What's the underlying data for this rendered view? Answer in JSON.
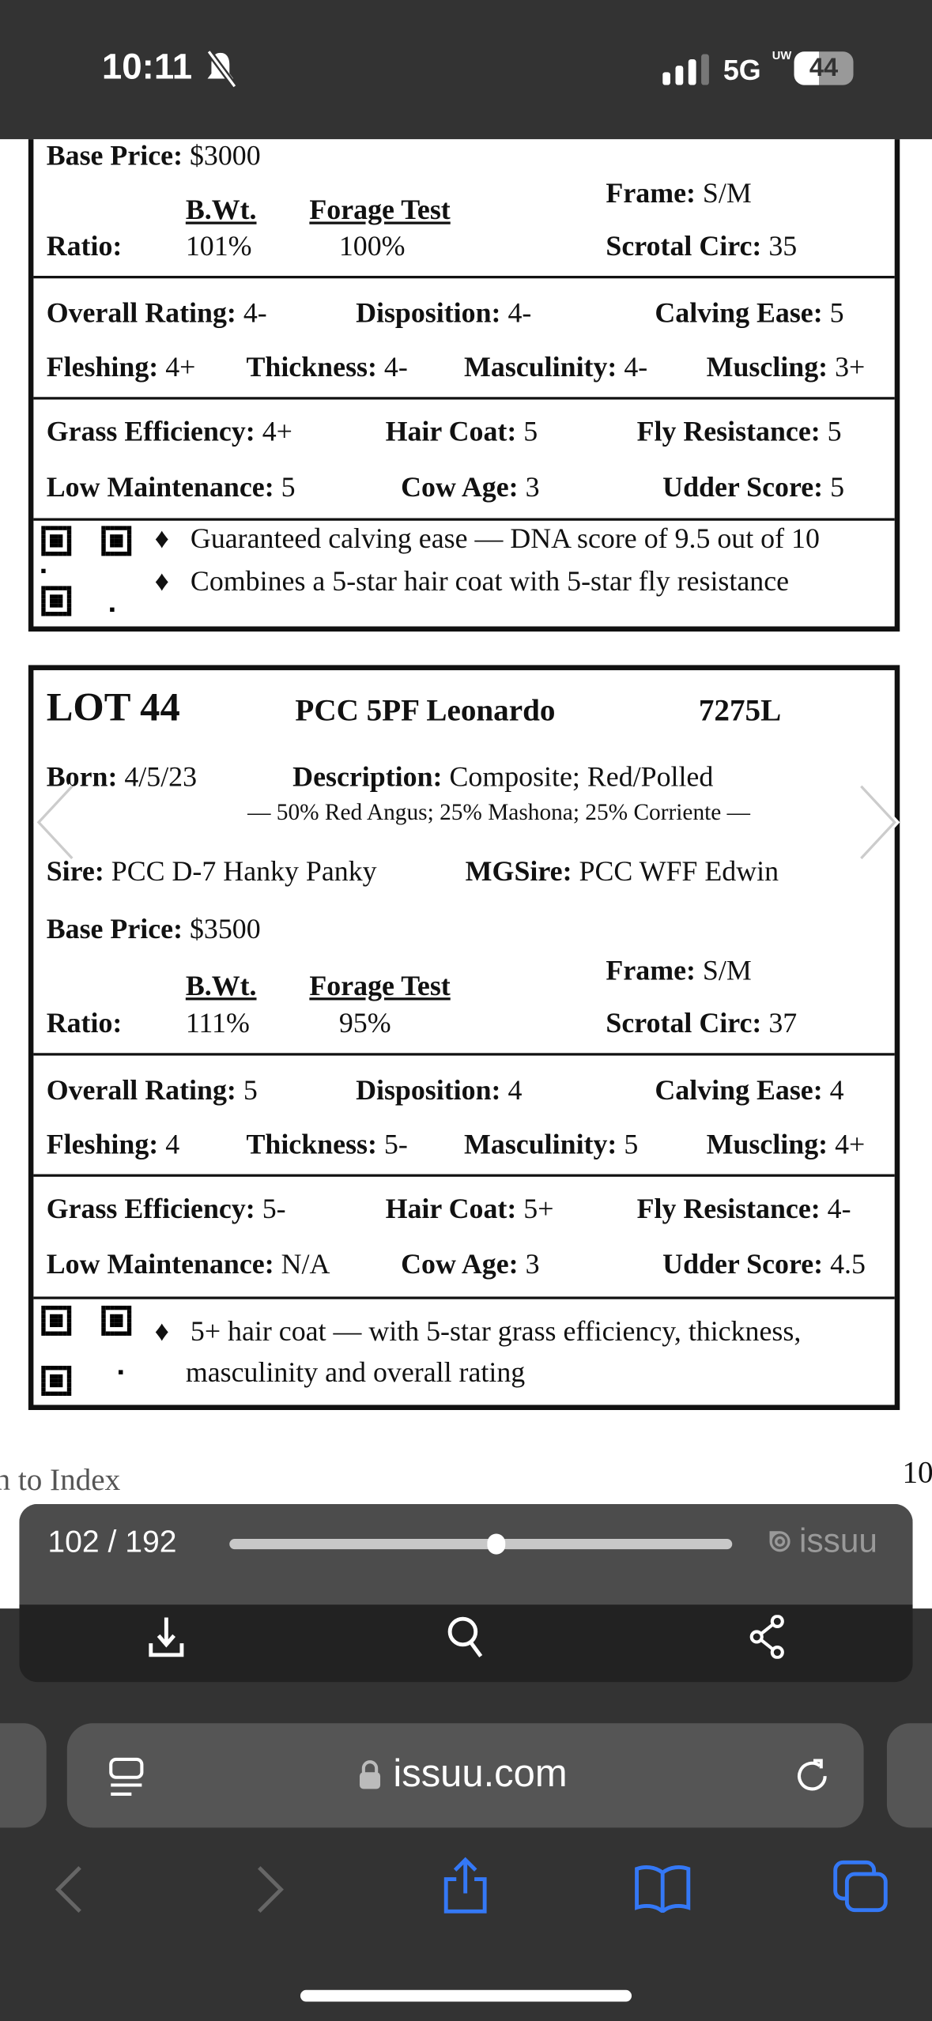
{
  "status_bar": {
    "time": "10:11",
    "network": "5G",
    "network_sub": "UW",
    "battery": "44"
  },
  "card_prev": {
    "base_price_label": "Base Price:",
    "base_price": "$3000",
    "bwt_label": "B.Wt.",
    "forage_label": "Forage Test",
    "ratio_label": "Ratio:",
    "bwt": "101%",
    "forage": "100%",
    "frame_label": "Frame:",
    "frame": "S/M",
    "scrotal_label": "Scrotal Circ:",
    "scrotal": "35",
    "ratings": [
      {
        "label": "Overall Rating:",
        "value": "4-"
      },
      {
        "label": "Disposition:",
        "value": "4-"
      },
      {
        "label": "Calving Ease:",
        "value": "5"
      },
      {
        "label": "Fleshing:",
        "value": "4+"
      },
      {
        "label": "Thickness:",
        "value": "4-"
      },
      {
        "label": "Masculinity:",
        "value": "4-"
      },
      {
        "label": "Muscling:",
        "value": "3+"
      },
      {
        "label": "Grass Efficiency:",
        "value": "4+"
      },
      {
        "label": "Hair Coat:",
        "value": "5"
      },
      {
        "label": "Fly Resistance:",
        "value": "5"
      },
      {
        "label": "Low Maintenance:",
        "value": "5"
      },
      {
        "label": "Cow Age:",
        "value": "3"
      },
      {
        "label": "Udder Score:",
        "value": "5"
      }
    ],
    "bullets": [
      "Guaranteed calving ease — DNA score of 9.5 out of 10",
      "Combines a 5-star hair coat with 5-star fly resistance"
    ]
  },
  "card_lot44": {
    "lot": "LOT 44",
    "name": "PCC 5PF Leonardo",
    "tag": "7275L",
    "born_label": "Born:",
    "born": "4/5/23",
    "description_label": "Description:",
    "description": "Composite; Red/Polled",
    "breed": "— 50% Red Angus; 25% Mashona; 25% Corriente —",
    "sire_label": "Sire:",
    "sire": "PCC D-7 Hanky Panky",
    "mgsire_label": "MGSire:",
    "mgsire": "PCC WFF Edwin",
    "base_price_label": "Base Price:",
    "base_price": "$3500",
    "bwt_label": "B.Wt.",
    "forage_label": "Forage Test",
    "ratio_label": "Ratio:",
    "bwt": "111%",
    "forage": "95%",
    "frame_label": "Frame:",
    "frame": "S/M",
    "scrotal_label": "Scrotal Circ:",
    "scrotal": "37",
    "ratings": [
      {
        "label": "Overall Rating:",
        "value": "5"
      },
      {
        "label": "Disposition:",
        "value": "4"
      },
      {
        "label": "Calving Ease:",
        "value": "4"
      },
      {
        "label": "Fleshing:",
        "value": "4"
      },
      {
        "label": "Thickness:",
        "value": "5-"
      },
      {
        "label": "Masculinity:",
        "value": "5"
      },
      {
        "label": "Muscling:",
        "value": "4+"
      },
      {
        "label": "Grass Efficiency:",
        "value": "5-"
      },
      {
        "label": "Hair Coat:",
        "value": "5+"
      },
      {
        "label": "Fly Resistance:",
        "value": "4-"
      },
      {
        "label": "Low Maintenance:",
        "value": "N/A"
      },
      {
        "label": "Cow Age:",
        "value": "3"
      },
      {
        "label": "Udder Score:",
        "value": "4.5"
      }
    ],
    "bullets": [
      "5+ hair coat — with 5-star grass efficiency, thickness,",
      "masculinity and overall rating"
    ]
  },
  "page_footer": {
    "page_number_partial": "10",
    "index_link_partial": "n to Index"
  },
  "issuu_bar": {
    "page_counter": "102 / 192",
    "progress": 0.53,
    "brand": "issuu",
    "icons": [
      "download-icon",
      "search-icon",
      "share-icon"
    ]
  },
  "safari": {
    "url": "issuu.com",
    "icons": [
      "reader-icon",
      "lock-icon",
      "reload-icon",
      "back-icon",
      "forward-icon",
      "share-icon",
      "bookmarks-icon",
      "tabs-icon"
    ],
    "accent": "#3478f6"
  }
}
